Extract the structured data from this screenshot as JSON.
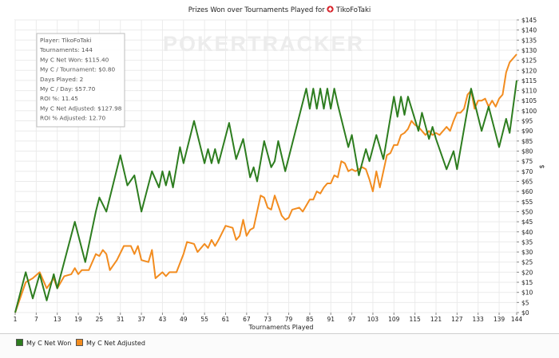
{
  "chart_data": {
    "type": "line",
    "title": "Prizes Won over Tournaments Played for",
    "player": "TikoFoTaki",
    "xlabel": "Tournaments Played",
    "ylabel": "$",
    "xlim": [
      1,
      144
    ],
    "ylim": [
      0,
      145
    ],
    "x_ticks": [
      1,
      7,
      13,
      19,
      25,
      31,
      37,
      43,
      49,
      55,
      61,
      67,
      73,
      79,
      85,
      91,
      97,
      103,
      109,
      115,
      121,
      127,
      133,
      139,
      144
    ],
    "y_ticks": [
      "$0",
      "$5",
      "$10",
      "$15",
      "$20",
      "$25",
      "$30",
      "$35",
      "$40",
      "$45",
      "$50",
      "$55",
      "$60",
      "$65",
      "$70",
      "$75",
      "$80",
      "$85",
      "$90",
      "$95",
      "$100",
      "$105",
      "$110",
      "$115",
      "$120",
      "$125",
      "$130",
      "$135",
      "$140",
      "$145"
    ],
    "watermark": "POKERTRACKER",
    "stats_box": [
      "Player: TikoFoTaki",
      "Tournaments: 144",
      "My C Net Won: $115.40",
      "My C / Tournament: $0.80",
      "Days Played: 2",
      "My C / Day: $57.70",
      "ROI %: 11.45",
      "My C Net Adjusted: $127.98",
      "ROI % Adjusted: 12.70"
    ],
    "colors": {
      "net_won": "#2d7d1f",
      "net_adjusted": "#f28c1f"
    },
    "series": [
      {
        "name": "My C Net Won",
        "points": [
          [
            1,
            0
          ],
          [
            4,
            20
          ],
          [
            6,
            7
          ],
          [
            8,
            19
          ],
          [
            10,
            6
          ],
          [
            12,
            19
          ],
          [
            13,
            12
          ],
          [
            18,
            45
          ],
          [
            21,
            25
          ],
          [
            24,
            50
          ],
          [
            25,
            57
          ],
          [
            27,
            50
          ],
          [
            31,
            78
          ],
          [
            33,
            63
          ],
          [
            35,
            68
          ],
          [
            37,
            50
          ],
          [
            40,
            70
          ],
          [
            42,
            62
          ],
          [
            43,
            70
          ],
          [
            44,
            63
          ],
          [
            45,
            70
          ],
          [
            46,
            62
          ],
          [
            48,
            82
          ],
          [
            49,
            74
          ],
          [
            52,
            95
          ],
          [
            55,
            74
          ],
          [
            56,
            81
          ],
          [
            57,
            74
          ],
          [
            58,
            81
          ],
          [
            59,
            74
          ],
          [
            62,
            94
          ],
          [
            64,
            76
          ],
          [
            66,
            86
          ],
          [
            68,
            67
          ],
          [
            69,
            72
          ],
          [
            70,
            65
          ],
          [
            72,
            85
          ],
          [
            74,
            72
          ],
          [
            75,
            75
          ],
          [
            76,
            85
          ],
          [
            78,
            70
          ],
          [
            84,
            111
          ],
          [
            85,
            101
          ],
          [
            86,
            111
          ],
          [
            87,
            101
          ],
          [
            88,
            111
          ],
          [
            89,
            101
          ],
          [
            90,
            111
          ],
          [
            91,
            101
          ],
          [
            92,
            111
          ],
          [
            93,
            103
          ],
          [
            96,
            82
          ],
          [
            97,
            88
          ],
          [
            99,
            68
          ],
          [
            101,
            81
          ],
          [
            102,
            75
          ],
          [
            104,
            88
          ],
          [
            106,
            76
          ],
          [
            109,
            107
          ],
          [
            110,
            97
          ],
          [
            111,
            107
          ],
          [
            112,
            98
          ],
          [
            113,
            107
          ],
          [
            116,
            90
          ],
          [
            117,
            99
          ],
          [
            119,
            86
          ],
          [
            120,
            92
          ],
          [
            121,
            86
          ],
          [
            124,
            71
          ],
          [
            126,
            80
          ],
          [
            127,
            71
          ],
          [
            131,
            111
          ],
          [
            134,
            90
          ],
          [
            136,
            102
          ],
          [
            139,
            82
          ],
          [
            141,
            96
          ],
          [
            142,
            89
          ],
          [
            144,
            115
          ]
        ]
      },
      {
        "name": "My C Net Adjusted",
        "points": [
          [
            1,
            0
          ],
          [
            4,
            15
          ],
          [
            6,
            17
          ],
          [
            8,
            20
          ],
          [
            10,
            12
          ],
          [
            12,
            17
          ],
          [
            13,
            12
          ],
          [
            15,
            18
          ],
          [
            17,
            19
          ],
          [
            18,
            22
          ],
          [
            19,
            19
          ],
          [
            20,
            21
          ],
          [
            22,
            21
          ],
          [
            24,
            29
          ],
          [
            25,
            28
          ],
          [
            26,
            31
          ],
          [
            27,
            29
          ],
          [
            28,
            21
          ],
          [
            30,
            26
          ],
          [
            32,
            33
          ],
          [
            34,
            33
          ],
          [
            35,
            29
          ],
          [
            36,
            33
          ],
          [
            37,
            26
          ],
          [
            39,
            25
          ],
          [
            40,
            31
          ],
          [
            41,
            17
          ],
          [
            43,
            20
          ],
          [
            44,
            18
          ],
          [
            45,
            20
          ],
          [
            47,
            20
          ],
          [
            49,
            29
          ],
          [
            50,
            35
          ],
          [
            52,
            34
          ],
          [
            53,
            30
          ],
          [
            55,
            34
          ],
          [
            56,
            32
          ],
          [
            57,
            36
          ],
          [
            58,
            33
          ],
          [
            59,
            36
          ],
          [
            61,
            43
          ],
          [
            63,
            42
          ],
          [
            64,
            36
          ],
          [
            65,
            38
          ],
          [
            66,
            46
          ],
          [
            67,
            38
          ],
          [
            68,
            41
          ],
          [
            69,
            42
          ],
          [
            71,
            58
          ],
          [
            72,
            57
          ],
          [
            73,
            52
          ],
          [
            74,
            51
          ],
          [
            75,
            58
          ],
          [
            77,
            48
          ],
          [
            78,
            46
          ],
          [
            79,
            47
          ],
          [
            80,
            51
          ],
          [
            82,
            52
          ],
          [
            83,
            50
          ],
          [
            85,
            56
          ],
          [
            86,
            56
          ],
          [
            87,
            60
          ],
          [
            88,
            59
          ],
          [
            89,
            62
          ],
          [
            90,
            64
          ],
          [
            91,
            64
          ],
          [
            92,
            68
          ],
          [
            93,
            67
          ],
          [
            94,
            75
          ],
          [
            95,
            74
          ],
          [
            96,
            70
          ],
          [
            97,
            71
          ],
          [
            98,
            70
          ],
          [
            100,
            72
          ],
          [
            101,
            71
          ],
          [
            102,
            66
          ],
          [
            103,
            60
          ],
          [
            104,
            70
          ],
          [
            105,
            62
          ],
          [
            107,
            78
          ],
          [
            108,
            79
          ],
          [
            109,
            83
          ],
          [
            110,
            83
          ],
          [
            111,
            88
          ],
          [
            112,
            89
          ],
          [
            113,
            91
          ],
          [
            114,
            95
          ],
          [
            115,
            93
          ],
          [
            116,
            92
          ],
          [
            118,
            88
          ],
          [
            119,
            90
          ],
          [
            120,
            88
          ],
          [
            121,
            89
          ],
          [
            122,
            88
          ],
          [
            124,
            92
          ],
          [
            125,
            90
          ],
          [
            126,
            95
          ],
          [
            127,
            99
          ],
          [
            128,
            99
          ],
          [
            129,
            101
          ],
          [
            130,
            108
          ],
          [
            131,
            110
          ],
          [
            132,
            101
          ],
          [
            133,
            105
          ],
          [
            134,
            105
          ],
          [
            135,
            106
          ],
          [
            136,
            102
          ],
          [
            137,
            105
          ],
          [
            138,
            102
          ],
          [
            139,
            106
          ],
          [
            140,
            108
          ],
          [
            141,
            119
          ],
          [
            142,
            124
          ],
          [
            143,
            126
          ],
          [
            144,
            128
          ]
        ]
      }
    ]
  }
}
